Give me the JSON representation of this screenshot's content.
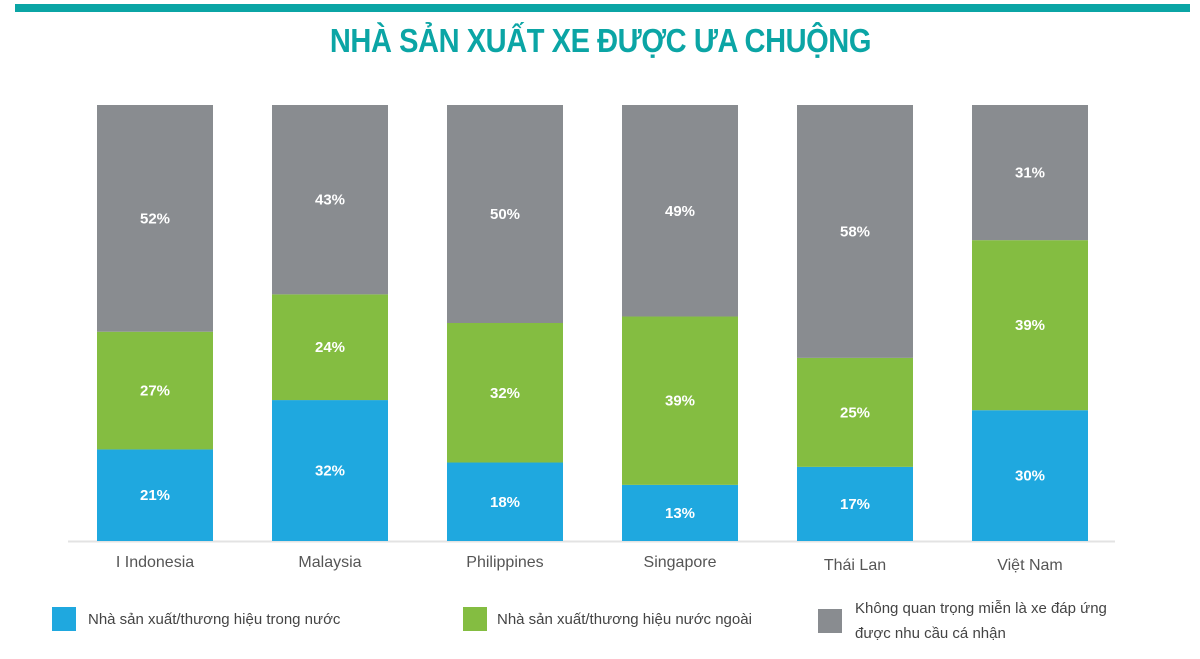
{
  "chart_data": {
    "type": "bar",
    "stacked": true,
    "title": "NHÀ SẢN XUẤT XE ĐƯỢC ƯA CHUỘNG",
    "categories": [
      "I Indonesia",
      "Malaysia",
      "Philippines",
      "Singapore",
      "Thái Lan",
      "Việt Nam"
    ],
    "series": [
      {
        "name": "Nhà sản xuất/thương hiệu trong nước",
        "color": "#1fa8df",
        "values": [
          21,
          32,
          18,
          13,
          17,
          30
        ]
      },
      {
        "name": "Nhà sản xuất/thương hiệu nước ngoài",
        "color": "#84bd41",
        "values": [
          27,
          24,
          32,
          39,
          25,
          39
        ]
      },
      {
        "name": "Không quan trọng miễn là xe đáp ứng được nhu cầu cá nhân",
        "color": "#898c90",
        "values": [
          52,
          43,
          50,
          49,
          58,
          31
        ]
      }
    ],
    "unit": "%",
    "legend_position": "bottom",
    "grid": false
  },
  "accent_color": "#0ba5a5",
  "legend": {
    "items": [
      {
        "lines": [
          "Nhà sản xuất/thương hiệu trong nước"
        ]
      },
      {
        "lines": [
          "Nhà sản xuất/thương hiệu nước ngoài"
        ]
      },
      {
        "lines": [
          "Không quan trọng miễn là xe đáp ứng",
          "được nhu cầu cá nhận"
        ]
      }
    ]
  }
}
